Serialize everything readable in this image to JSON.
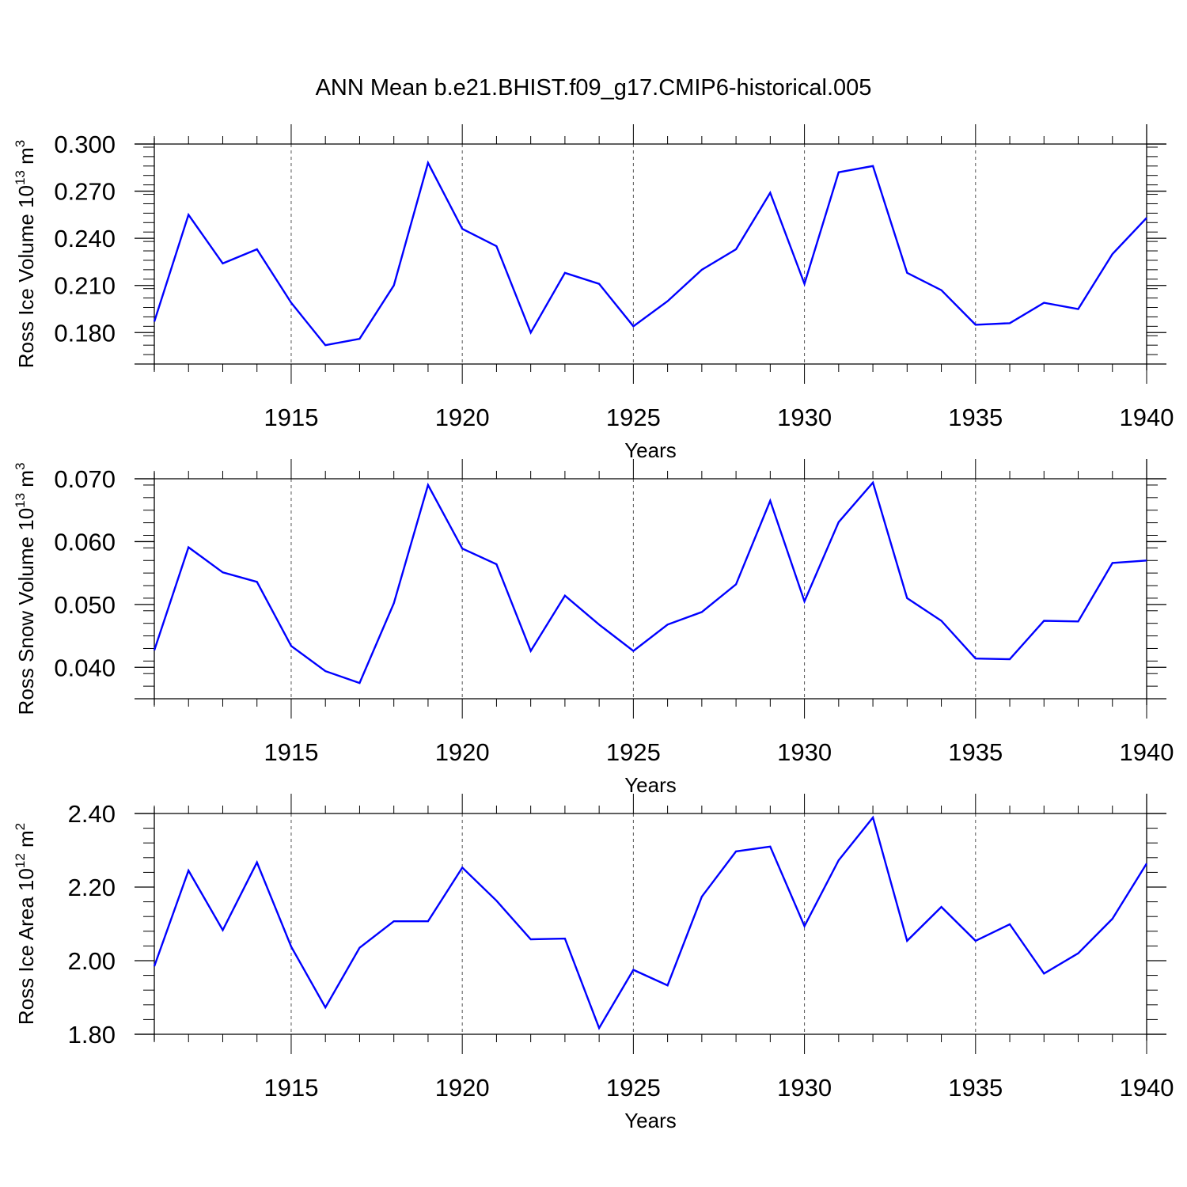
{
  "title": "ANN Mean b.e21.BHIST.f09_g17.CMIP6-historical.005",
  "colors": {
    "line": "#0000ff",
    "axis": "#000000",
    "grid": "#555555"
  },
  "chart_data": [
    {
      "type": "line",
      "xlabel": "Years",
      "ylabel": {
        "main": "Ross Ice Volume 10",
        "exp": "13",
        "unit": " m",
        "unit_exp": "3"
      },
      "xlim": [
        1911,
        1940
      ],
      "ylim": [
        0.16,
        0.3
      ],
      "xticks": [
        1915,
        1920,
        1925,
        1930,
        1935,
        1940
      ],
      "yticks": [
        0.18,
        0.21,
        0.24,
        0.27,
        0.3
      ],
      "ytick_labels": [
        "0.180",
        "0.210",
        "0.240",
        "0.270",
        "0.300"
      ],
      "x": [
        1911,
        1912,
        1913,
        1914,
        1915,
        1916,
        1917,
        1918,
        1919,
        1920,
        1921,
        1922,
        1923,
        1924,
        1925,
        1926,
        1927,
        1928,
        1929,
        1930,
        1931,
        1932,
        1933,
        1934,
        1935,
        1936,
        1937,
        1938,
        1939,
        1940
      ],
      "values": [
        0.187,
        0.255,
        0.224,
        0.233,
        0.199,
        0.172,
        0.176,
        0.21,
        0.288,
        0.246,
        0.235,
        0.18,
        0.218,
        0.211,
        0.184,
        0.2,
        0.22,
        0.233,
        0.269,
        0.211,
        0.282,
        0.286,
        0.218,
        0.207,
        0.185,
        0.186,
        0.199,
        0.195,
        0.23,
        0.253
      ]
    },
    {
      "type": "line",
      "xlabel": "Years",
      "ylabel": {
        "main": "Ross Snow Volume 10",
        "exp": "13",
        "unit": " m",
        "unit_exp": "3"
      },
      "xlim": [
        1911,
        1940
      ],
      "ylim": [
        0.035,
        0.07
      ],
      "xticks": [
        1915,
        1920,
        1925,
        1930,
        1935,
        1940
      ],
      "yticks": [
        0.04,
        0.05,
        0.06,
        0.07
      ],
      "ytick_labels": [
        "0.040",
        "0.050",
        "0.060",
        "0.070"
      ],
      "x": [
        1911,
        1912,
        1913,
        1914,
        1915,
        1916,
        1917,
        1918,
        1919,
        1920,
        1921,
        1922,
        1923,
        1924,
        1925,
        1926,
        1927,
        1928,
        1929,
        1930,
        1931,
        1932,
        1933,
        1934,
        1935,
        1936,
        1937,
        1938,
        1939,
        1940
      ],
      "values": [
        0.0427,
        0.0591,
        0.0551,
        0.0536,
        0.0434,
        0.0394,
        0.0375,
        0.0502,
        0.069,
        0.0589,
        0.0564,
        0.0426,
        0.0514,
        0.0468,
        0.0426,
        0.0468,
        0.0488,
        0.0532,
        0.0665,
        0.0505,
        0.0631,
        0.0694,
        0.051,
        0.0474,
        0.0414,
        0.0413,
        0.0474,
        0.0473,
        0.0566,
        0.057
      ]
    },
    {
      "type": "line",
      "xlabel": "Years",
      "ylabel": {
        "main": "Ross Ice Area 10",
        "exp": "12",
        "unit": " m",
        "unit_exp": "2"
      },
      "xlim": [
        1911,
        1940
      ],
      "ylim": [
        1.8,
        2.4
      ],
      "xticks": [
        1915,
        1920,
        1925,
        1930,
        1935,
        1940
      ],
      "yticks": [
        1.8,
        2.0,
        2.2,
        2.4
      ],
      "ytick_labels": [
        "1.80",
        "2.00",
        "2.20",
        "2.40"
      ],
      "x": [
        1911,
        1912,
        1913,
        1914,
        1915,
        1916,
        1917,
        1918,
        1919,
        1920,
        1921,
        1922,
        1923,
        1924,
        1925,
        1926,
        1927,
        1928,
        1929,
        1930,
        1931,
        1932,
        1933,
        1934,
        1935,
        1936,
        1937,
        1938,
        1939,
        1940
      ],
      "values": [
        1.985,
        2.245,
        2.083,
        2.267,
        2.038,
        1.873,
        2.035,
        2.107,
        2.107,
        2.253,
        2.163,
        2.058,
        2.06,
        1.817,
        1.975,
        1.933,
        2.174,
        2.297,
        2.31,
        2.094,
        2.273,
        2.389,
        2.054,
        2.146,
        2.054,
        2.099,
        1.965,
        2.02,
        2.114,
        2.264
      ]
    }
  ]
}
